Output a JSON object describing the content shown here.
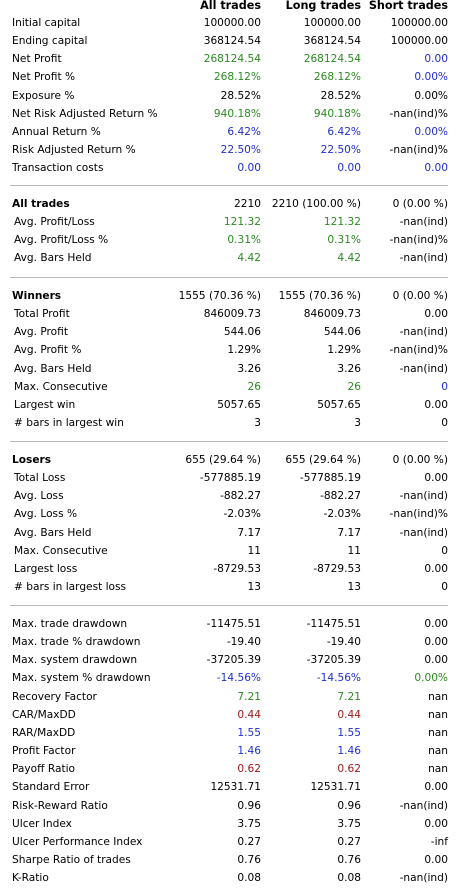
{
  "headers": [
    "All trades",
    "Long trades",
    "Short trades"
  ],
  "colors": {
    "green": "#2c8a22",
    "blue": "#1f2fcf",
    "red": "#a01818",
    "separator": "#b9b9b9"
  },
  "sections": [
    {
      "rows": [
        {
          "label": "Initial capital",
          "values": [
            "100000.00",
            "100000.00",
            "100000.00"
          ],
          "colors": [
            "",
            "",
            ""
          ]
        },
        {
          "label": "Ending capital",
          "values": [
            "368124.54",
            "368124.54",
            "100000.00"
          ],
          "colors": [
            "",
            "",
            ""
          ]
        },
        {
          "label": "Net Profit",
          "values": [
            "268124.54",
            "268124.54",
            "0.00"
          ],
          "colors": [
            "green",
            "green",
            "blue"
          ]
        },
        {
          "label": "Net Profit %",
          "values": [
            "268.12%",
            "268.12%",
            "0.00%"
          ],
          "colors": [
            "green",
            "green",
            "blue"
          ]
        },
        {
          "label": "Exposure %",
          "values": [
            "28.52%",
            "28.52%",
            "0.00%"
          ],
          "colors": [
            "",
            "",
            ""
          ]
        },
        {
          "label": "Net Risk Adjusted Return %",
          "values": [
            "940.18%",
            "940.18%",
            "-nan(ind)%"
          ],
          "colors": [
            "green",
            "green",
            ""
          ]
        },
        {
          "label": "Annual Return %",
          "values": [
            "6.42%",
            "6.42%",
            "0.00%"
          ],
          "colors": [
            "blue",
            "blue",
            "blue"
          ]
        },
        {
          "label": "Risk Adjusted Return %",
          "values": [
            "22.50%",
            "22.50%",
            "-nan(ind)%"
          ],
          "colors": [
            "blue",
            "blue",
            ""
          ]
        },
        {
          "label": "Transaction costs",
          "values": [
            "0.00",
            "0.00",
            "0.00"
          ],
          "colors": [
            "blue",
            "blue",
            "blue"
          ]
        }
      ]
    },
    {
      "rows": [
        {
          "label": "All trades",
          "values": [
            "2210",
            "2210 (100.00 %)",
            "0 (0.00 %)"
          ],
          "colors": [
            "",
            "",
            ""
          ],
          "bold": true
        },
        {
          "label": "Avg. Profit/Loss",
          "values": [
            "121.32",
            "121.32",
            "-nan(ind)"
          ],
          "colors": [
            "green",
            "green",
            ""
          ]
        },
        {
          "label": "Avg. Profit/Loss %",
          "values": [
            "0.31%",
            "0.31%",
            "-nan(ind)%"
          ],
          "colors": [
            "green",
            "green",
            ""
          ]
        },
        {
          "label": "Avg. Bars Held",
          "values": [
            "4.42",
            "4.42",
            "-nan(ind)"
          ],
          "colors": [
            "green",
            "green",
            ""
          ]
        }
      ]
    },
    {
      "rows": [
        {
          "label": "Winners",
          "values": [
            "1555 (70.36 %)",
            "1555 (70.36 %)",
            "0 (0.00 %)"
          ],
          "colors": [
            "",
            "",
            ""
          ],
          "bold": true
        },
        {
          "label": "Total Profit",
          "values": [
            "846009.73",
            "846009.73",
            "0.00"
          ],
          "colors": [
            "",
            "",
            ""
          ]
        },
        {
          "label": "Avg. Profit",
          "values": [
            "544.06",
            "544.06",
            "-nan(ind)"
          ],
          "colors": [
            "",
            "",
            ""
          ]
        },
        {
          "label": "Avg. Profit %",
          "values": [
            "1.29%",
            "1.29%",
            "-nan(ind)%"
          ],
          "colors": [
            "",
            "",
            ""
          ]
        },
        {
          "label": "Avg. Bars Held",
          "values": [
            "3.26",
            "3.26",
            "-nan(ind)"
          ],
          "colors": [
            "",
            "",
            ""
          ]
        },
        {
          "label": "Max. Consecutive",
          "values": [
            "26",
            "26",
            "0"
          ],
          "colors": [
            "green",
            "green",
            "blue"
          ]
        },
        {
          "label": "Largest win",
          "values": [
            "5057.65",
            "5057.65",
            "0.00"
          ],
          "colors": [
            "",
            "",
            ""
          ]
        },
        {
          "label": "# bars in largest win",
          "values": [
            "3",
            "3",
            "0"
          ],
          "colors": [
            "",
            "",
            ""
          ]
        }
      ]
    },
    {
      "rows": [
        {
          "label": "Losers",
          "values": [
            "655 (29.64 %)",
            "655 (29.64 %)",
            "0 (0.00 %)"
          ],
          "colors": [
            "",
            "",
            ""
          ],
          "bold": true
        },
        {
          "label": "Total Loss",
          "values": [
            "-577885.19",
            "-577885.19",
            "0.00"
          ],
          "colors": [
            "",
            "",
            ""
          ]
        },
        {
          "label": "Avg. Loss",
          "values": [
            "-882.27",
            "-882.27",
            "-nan(ind)"
          ],
          "colors": [
            "",
            "",
            ""
          ]
        },
        {
          "label": "Avg. Loss %",
          "values": [
            "-2.03%",
            "-2.03%",
            "-nan(ind)%"
          ],
          "colors": [
            "",
            "",
            ""
          ]
        },
        {
          "label": "Avg. Bars Held",
          "values": [
            "7.17",
            "7.17",
            "-nan(ind)"
          ],
          "colors": [
            "",
            "",
            ""
          ]
        },
        {
          "label": "Max. Consecutive",
          "values": [
            "11",
            "11",
            "0"
          ],
          "colors": [
            "",
            "",
            ""
          ]
        },
        {
          "label": "Largest loss",
          "values": [
            "-8729.53",
            "-8729.53",
            "0.00"
          ],
          "colors": [
            "",
            "",
            ""
          ]
        },
        {
          "label": "# bars in largest loss",
          "values": [
            "13",
            "13",
            "0"
          ],
          "colors": [
            "",
            "",
            ""
          ]
        }
      ]
    },
    {
      "rows": [
        {
          "label": "Max. trade drawdown",
          "values": [
            "-11475.51",
            "-11475.51",
            "0.00"
          ],
          "colors": [
            "",
            "",
            ""
          ]
        },
        {
          "label": "Max. trade % drawdown",
          "values": [
            "-19.40",
            "-19.40",
            "0.00"
          ],
          "colors": [
            "",
            "",
            ""
          ]
        },
        {
          "label": "Max. system drawdown",
          "values": [
            "-37205.39",
            "-37205.39",
            "0.00"
          ],
          "colors": [
            "",
            "",
            ""
          ]
        },
        {
          "label": "Max. system % drawdown",
          "values": [
            "-14.56%",
            "-14.56%",
            "0.00%"
          ],
          "colors": [
            "blue",
            "blue",
            "green"
          ]
        },
        {
          "label": "Recovery Factor",
          "values": [
            "7.21",
            "7.21",
            "nan"
          ],
          "colors": [
            "green",
            "green",
            ""
          ]
        },
        {
          "label": "CAR/MaxDD",
          "values": [
            "0.44",
            "0.44",
            "nan"
          ],
          "colors": [
            "red",
            "red",
            ""
          ]
        },
        {
          "label": "RAR/MaxDD",
          "values": [
            "1.55",
            "1.55",
            "nan"
          ],
          "colors": [
            "blue",
            "blue",
            ""
          ]
        },
        {
          "label": "Profit Factor",
          "values": [
            "1.46",
            "1.46",
            "nan"
          ],
          "colors": [
            "blue",
            "blue",
            ""
          ]
        },
        {
          "label": "Payoff Ratio",
          "values": [
            "0.62",
            "0.62",
            "nan"
          ],
          "colors": [
            "red",
            "red",
            ""
          ]
        },
        {
          "label": "Standard Error",
          "values": [
            "12531.71",
            "12531.71",
            "0.00"
          ],
          "colors": [
            "",
            "",
            ""
          ]
        },
        {
          "label": "Risk-Reward Ratio",
          "values": [
            "0.96",
            "0.96",
            "-nan(ind)"
          ],
          "colors": [
            "",
            "",
            ""
          ]
        },
        {
          "label": "Ulcer Index",
          "values": [
            "3.75",
            "3.75",
            "0.00"
          ],
          "colors": [
            "",
            "",
            ""
          ]
        },
        {
          "label": "Ulcer Performance Index",
          "values": [
            "0.27",
            "0.27",
            "-inf"
          ],
          "colors": [
            "",
            "",
            ""
          ]
        },
        {
          "label": "Sharpe Ratio of trades",
          "values": [
            "0.76",
            "0.76",
            "0.00"
          ],
          "colors": [
            "",
            "",
            ""
          ]
        },
        {
          "label": "K-Ratio",
          "values": [
            "0.08",
            "0.08",
            "-nan(ind)"
          ],
          "colors": [
            "",
            "",
            ""
          ]
        }
      ]
    }
  ]
}
